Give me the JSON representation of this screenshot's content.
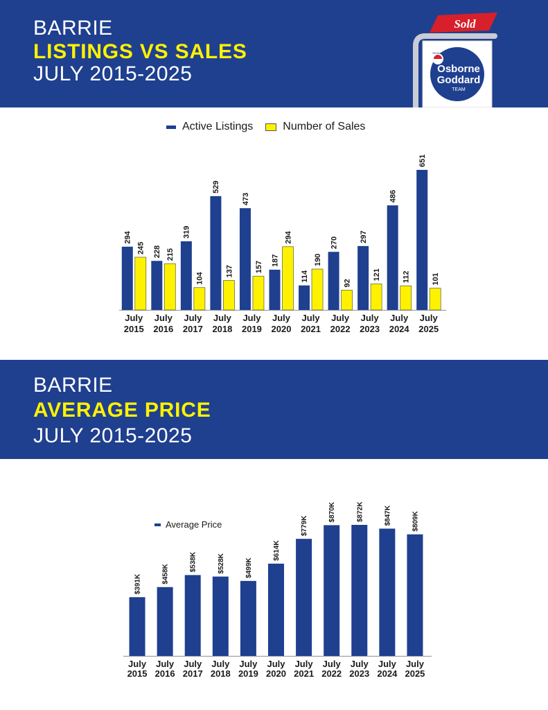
{
  "section1": {
    "city": "BARRIE",
    "title": "LISTINGS VS SALES",
    "period": "JULY 2015-2025"
  },
  "section2": {
    "city": "BARRIE",
    "title": "AVERAGE PRICE",
    "period": "JULY 2015-2025"
  },
  "logo": {
    "sold_text": "Sold",
    "brand_small": "RE/MAX",
    "line1": "Osborne",
    "line2": "Goddard",
    "line3": "TEAM"
  },
  "colors": {
    "banner": "#1f3f8f",
    "highlight": "#fff200",
    "bar_blue": "#1f3f8f",
    "bar_yellow": "#fff200",
    "sold_red": "#d7202b"
  },
  "chart_data": [
    {
      "type": "bar",
      "categories": [
        "July 2015",
        "July 2016",
        "July 2017",
        "July 2018",
        "July 2019",
        "July 2020",
        "July 2021",
        "July 2022",
        "July 2023",
        "July 2024",
        "July 2025"
      ],
      "category_line1": [
        "July",
        "July",
        "July",
        "July",
        "July",
        "July",
        "July",
        "July",
        "July",
        "July",
        "July"
      ],
      "category_line2": [
        "2015",
        "2016",
        "2017",
        "2018",
        "2019",
        "2020",
        "2021",
        "2022",
        "2023",
        "2024",
        "2025"
      ],
      "series": [
        {
          "name": "Active Listings",
          "values": [
            294,
            228,
            319,
            529,
            473,
            187,
            114,
            270,
            297,
            486,
            651
          ],
          "labels": [
            "294",
            "228",
            "319",
            "529",
            "473",
            "187",
            "114",
            "270",
            "297",
            "486",
            "651"
          ]
        },
        {
          "name": "Number of Sales",
          "values": [
            245,
            215,
            104,
            137,
            157,
            294,
            190,
            92,
            121,
            112,
            101
          ],
          "labels": [
            "245",
            "215",
            "104",
            "137",
            "157",
            "294",
            "190",
            "92",
            "121",
            "112",
            "101"
          ]
        }
      ],
      "legend": "top-center",
      "grid": false,
      "ylim": [
        0,
        651
      ]
    },
    {
      "type": "bar",
      "categories": [
        "July 2015",
        "July 2016",
        "July 2017",
        "July 2018",
        "July 2019",
        "July 2020",
        "July 2021",
        "July 2022",
        "July 2023",
        "July 2024",
        "July 2025"
      ],
      "category_line1": [
        "July",
        "July",
        "July",
        "July",
        "July",
        "July",
        "July",
        "July",
        "July",
        "July",
        "July"
      ],
      "category_line2": [
        "2015",
        "2016",
        "2017",
        "2018",
        "2019",
        "2020",
        "2021",
        "2022",
        "2023",
        "2024",
        "2025"
      ],
      "series": [
        {
          "name": "Average Price",
          "values": [
            391,
            458,
            538,
            528,
            499,
            614,
            779,
            870,
            872,
            847,
            809
          ],
          "labels": [
            "$391K",
            "$458K",
            "$538K",
            "$528K",
            "$499K",
            "$614K",
            "$779K",
            "$870K",
            "$872K",
            "$847K",
            "$809K"
          ]
        }
      ],
      "legend": "top-left",
      "grid": false,
      "ylim": [
        0,
        872
      ]
    }
  ]
}
